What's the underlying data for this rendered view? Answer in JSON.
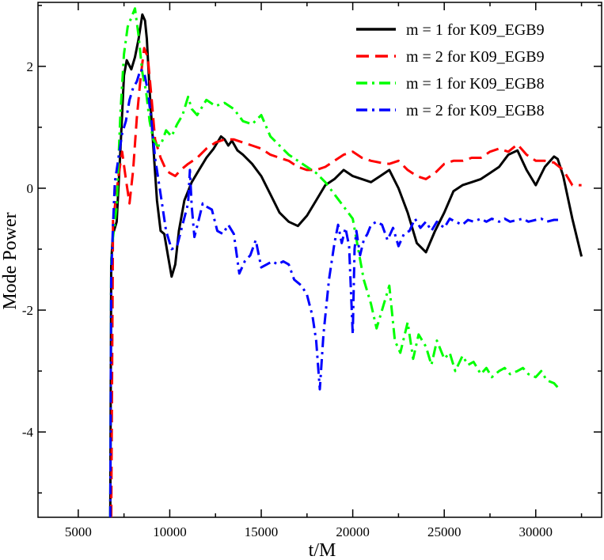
{
  "chart_data": {
    "type": "line",
    "title": "",
    "xlabel": "t/M",
    "ylabel": "Mode Power",
    "xlim": [
      2800,
      33600
    ],
    "ylim": [
      -5.4,
      3.05
    ],
    "x_ticks": [
      5000,
      10000,
      15000,
      20000,
      25000,
      30000
    ],
    "y_ticks": [
      -4,
      -2,
      0,
      2
    ],
    "x_tick_labels": [
      "5000",
      "10000",
      "15000",
      "20000",
      "25000",
      "30000"
    ],
    "y_tick_labels": [
      "-4",
      "-2",
      "0",
      "2"
    ],
    "grid": false,
    "legend_position": "top-right",
    "series": [
      {
        "name": "m = 1 for K09_EGB9",
        "color": "#000000",
        "style": "solid",
        "x": [
          6750,
          6800,
          6900,
          7100,
          7300,
          7500,
          7650,
          7900,
          8100,
          8300,
          8500,
          8650,
          8750,
          8900,
          9100,
          9300,
          9500,
          9700,
          9900,
          10100,
          10300,
          10500,
          10800,
          11200,
          11600,
          12000,
          12400,
          12800,
          13000,
          13200,
          13400,
          13700,
          14000,
          14500,
          15000,
          15500,
          16000,
          16500,
          17000,
          17500,
          18000,
          18500,
          19000,
          19500,
          20000,
          20500,
          21000,
          21500,
          22000,
          22500,
          23000,
          23500,
          24000,
          24500,
          25000,
          25500,
          26000,
          26500,
          27000,
          27500,
          28000,
          28500,
          29000,
          29500,
          30000,
          30500,
          31000,
          31200,
          31500,
          32000,
          32500
        ],
        "y": [
          -5.4,
          -1.2,
          -0.75,
          -0.55,
          0.6,
          1.85,
          2.1,
          1.95,
          2.15,
          2.45,
          2.85,
          2.75,
          2.45,
          1.6,
          0.7,
          -0.2,
          -0.7,
          -0.75,
          -1.1,
          -1.45,
          -1.25,
          -0.7,
          -0.2,
          0.1,
          0.3,
          0.5,
          0.65,
          0.85,
          0.8,
          0.7,
          0.78,
          0.62,
          0.55,
          0.4,
          0.2,
          -0.1,
          -0.4,
          -0.55,
          -0.62,
          -0.45,
          -0.2,
          0.05,
          0.15,
          0.3,
          0.2,
          0.15,
          0.1,
          0.2,
          0.3,
          0.0,
          -0.4,
          -0.9,
          -1.05,
          -0.7,
          -0.4,
          -0.05,
          0.05,
          0.1,
          0.15,
          0.25,
          0.35,
          0.55,
          0.62,
          0.3,
          0.05,
          0.35,
          0.52,
          0.48,
          0.2,
          -0.5,
          -1.12
        ]
      },
      {
        "name": "m = 2 for K09_EGB9",
        "color": "#ff0000",
        "style": "dashed",
        "x": [
          6800,
          6900,
          7000,
          7200,
          7400,
          7600,
          7800,
          8000,
          8200,
          8400,
          8600,
          8800,
          9000,
          9200,
          9500,
          9800,
          10000,
          10300,
          10600,
          11000,
          11500,
          12000,
          12500,
          13000,
          13500,
          14000,
          14500,
          15000,
          15500,
          16000,
          16500,
          17000,
          17500,
          18000,
          18500,
          19000,
          19500,
          20000,
          20500,
          21000,
          21500,
          22000,
          22500,
          23000,
          23500,
          24000,
          24500,
          25000,
          25500,
          26000,
          26500,
          27000,
          27500,
          28000,
          28500,
          29000,
          29500,
          30000,
          30500,
          31000,
          31500,
          32000,
          32500
        ],
        "y": [
          -5.4,
          -0.5,
          -0.3,
          0.2,
          0.6,
          0.15,
          -0.25,
          0.3,
          1.15,
          1.8,
          2.3,
          2.15,
          1.5,
          0.8,
          0.5,
          0.3,
          0.25,
          0.2,
          0.3,
          0.4,
          0.5,
          0.65,
          0.75,
          0.8,
          0.8,
          0.75,
          0.7,
          0.65,
          0.55,
          0.5,
          0.45,
          0.35,
          0.3,
          0.3,
          0.35,
          0.45,
          0.55,
          0.6,
          0.5,
          0.45,
          0.42,
          0.4,
          0.45,
          0.3,
          0.2,
          0.15,
          0.25,
          0.4,
          0.45,
          0.45,
          0.5,
          0.5,
          0.6,
          0.65,
          0.6,
          0.72,
          0.55,
          0.45,
          0.45,
          0.42,
          0.3,
          0.05,
          0.05
        ]
      },
      {
        "name": "m = 1 for K09_EGB8",
        "color": "#00ff00",
        "style": "dashdot",
        "x": [
          6750,
          6800,
          6900,
          7100,
          7300,
          7500,
          7700,
          7900,
          8100,
          8300,
          8500,
          8700,
          8900,
          9100,
          9300,
          9500,
          9800,
          10100,
          10400,
          10700,
          11000,
          11200,
          11500,
          11800,
          12000,
          12500,
          13000,
          13500,
          14000,
          14500,
          15000,
          15500,
          16000,
          16500,
          17000,
          17500,
          18000,
          18500,
          19000,
          19500,
          20000,
          20300,
          20600,
          21000,
          21300,
          21600,
          22000,
          22300,
          22600,
          23000,
          23300,
          23600,
          24000,
          24300,
          24600,
          25000,
          25300,
          25600,
          26000,
          26300,
          26600,
          27000,
          27300,
          27600,
          28000,
          28300,
          28600,
          29000,
          29300,
          29600,
          30000,
          30300,
          30600,
          31000,
          31300
        ],
        "y": [
          -5.4,
          -1.2,
          -0.8,
          -0.3,
          1.2,
          2.2,
          2.65,
          2.8,
          2.95,
          2.5,
          1.9,
          1.6,
          1.1,
          0.8,
          0.7,
          0.7,
          0.95,
          0.85,
          1.05,
          1.2,
          1.5,
          1.3,
          1.2,
          1.35,
          1.45,
          1.35,
          1.4,
          1.3,
          1.1,
          1.05,
          1.2,
          0.85,
          0.7,
          0.55,
          0.45,
          0.35,
          0.25,
          0.1,
          -0.1,
          -0.3,
          -0.5,
          -1.0,
          -1.5,
          -1.9,
          -2.3,
          -2.0,
          -1.6,
          -2.5,
          -2.7,
          -2.2,
          -2.8,
          -2.4,
          -2.6,
          -2.9,
          -2.5,
          -2.8,
          -2.7,
          -3.0,
          -2.75,
          -2.9,
          -2.85,
          -3.05,
          -2.95,
          -3.1,
          -3.0,
          -2.95,
          -3.05,
          -3.0,
          -2.95,
          -3.05,
          -3.1,
          -3.0,
          -3.15,
          -3.2,
          -3.3
        ]
      },
      {
        "name": "m = 2 for K09_EGB8",
        "color": "#0000ff",
        "style": "dashdot",
        "x": [
          6750,
          6800,
          6900,
          7000,
          7200,
          7400,
          7600,
          7800,
          8000,
          8200,
          8400,
          8600,
          8800,
          9000,
          9200,
          9500,
          9800,
          10100,
          10400,
          10700,
          11000,
          11100,
          11200,
          11350,
          11600,
          11800,
          12000,
          12300,
          12600,
          12900,
          13200,
          13500,
          13800,
          14100,
          14400,
          14700,
          15000,
          15300,
          15600,
          15900,
          16200,
          16500,
          16800,
          17200,
          17500,
          17800,
          18000,
          18200,
          18400,
          18700,
          19000,
          19200,
          19400,
          19600,
          19800,
          20000,
          20100,
          20200,
          20400,
          20600,
          20800,
          21000,
          21300,
          21600,
          21900,
          22200,
          22500,
          22800,
          23100,
          23400,
          23700,
          24000,
          24300,
          24600,
          25000,
          25300,
          25600,
          26000,
          26300,
          26600,
          27000,
          27300,
          27600,
          28000,
          28300,
          28600,
          29000,
          29300,
          29600,
          30000,
          30300,
          30600,
          31000,
          31300
        ],
        "y": [
          -5.4,
          -1.4,
          -0.6,
          0.1,
          0.5,
          0.9,
          1.1,
          1.45,
          1.65,
          1.75,
          1.95,
          1.9,
          1.6,
          1.1,
          0.5,
          -0.1,
          -0.7,
          -1.0,
          -0.95,
          -0.6,
          -0.25,
          0.3,
          -0.3,
          -0.8,
          -0.5,
          -0.25,
          -0.3,
          -0.35,
          -0.7,
          -0.75,
          -0.6,
          -0.75,
          -1.4,
          -1.2,
          -1.1,
          -0.85,
          -1.3,
          -1.25,
          -1.2,
          -1.25,
          -1.2,
          -1.25,
          -1.5,
          -1.6,
          -1.75,
          -2.1,
          -2.5,
          -3.3,
          -2.4,
          -1.5,
          -0.9,
          -0.6,
          -0.9,
          -0.65,
          -0.95,
          -2.4,
          -1.0,
          -0.7,
          -1.1,
          -0.85,
          -0.75,
          -0.6,
          -0.55,
          -0.6,
          -0.85,
          -0.65,
          -0.95,
          -0.75,
          -0.7,
          -0.5,
          -0.65,
          -0.55,
          -0.7,
          -0.55,
          -0.65,
          -0.5,
          -0.55,
          -0.6,
          -0.52,
          -0.55,
          -0.5,
          -0.55,
          -0.5,
          -0.55,
          -0.5,
          -0.55,
          -0.52,
          -0.5,
          -0.55,
          -0.52,
          -0.5,
          -0.55,
          -0.52,
          -0.52
        ]
      }
    ]
  }
}
